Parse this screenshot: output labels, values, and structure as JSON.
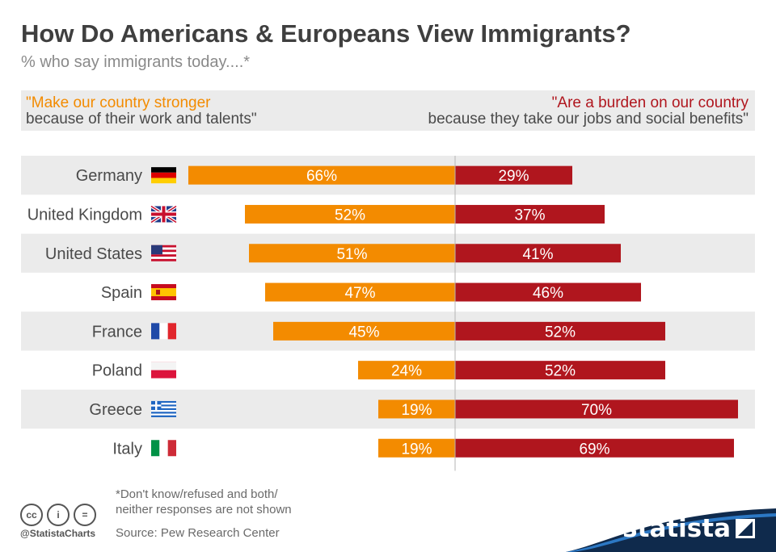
{
  "header": {
    "title": "How Do Americans & Europeans View Immigrants?",
    "subtitle": "% who say immigrants today....*"
  },
  "legend": {
    "left_line1": "\"Make our country stronger",
    "left_line2": "because of their work and talents\"",
    "right_line1": "\"Are a burden on our country",
    "right_line2": "because they take our jobs and social benefits\""
  },
  "colors": {
    "stronger": "#f38b00",
    "burden": "#b0161e",
    "row_band": "#ebebeb"
  },
  "chart_data": {
    "type": "bar",
    "orientation": "horizontal-diverging",
    "categories": [
      "Germany",
      "United Kingdom",
      "United States",
      "Spain",
      "France",
      "Poland",
      "Greece",
      "Italy"
    ],
    "series": [
      {
        "name": "Make our country stronger because of their work and talents",
        "values": [
          66,
          52,
          51,
          47,
          45,
          24,
          19,
          19
        ],
        "labels": [
          "66%",
          "52%",
          "51%",
          "47%",
          "45%",
          "24%",
          "19%",
          "19%"
        ]
      },
      {
        "name": "Are a burden on our country because they take our jobs and social benefits",
        "values": [
          29,
          37,
          41,
          46,
          52,
          52,
          70,
          69
        ],
        "labels": [
          "29%",
          "37%",
          "41%",
          "46%",
          "52%",
          "52%",
          "70%",
          "69%"
        ]
      }
    ],
    "flags": [
      "germany-flag",
      "uk-flag",
      "us-flag",
      "spain-flag",
      "france-flag",
      "poland-flag",
      "greece-flag",
      "italy-flag"
    ],
    "unit": "%"
  },
  "footer": {
    "footnote_line1": "*Don't know/refused and both/",
    "footnote_line2": "neither responses are not shown",
    "source": "Source: Pew Research Center",
    "handle": "@StatistaCharts",
    "brand": "statista"
  }
}
